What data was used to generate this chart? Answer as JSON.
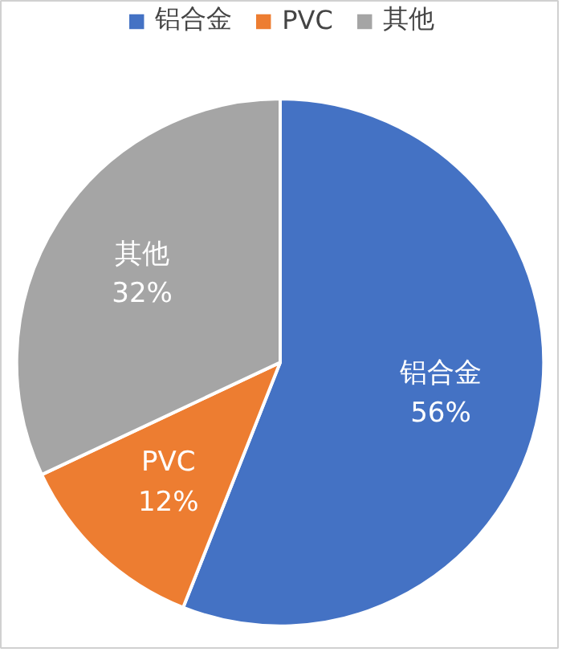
{
  "chart_data": {
    "type": "pie",
    "categories": [
      "铝合金",
      "PVC",
      "其他"
    ],
    "values": [
      56,
      12,
      32
    ],
    "colors": [
      "#4472c4",
      "#ed7d31",
      "#a5a5a5"
    ],
    "value_labels": [
      "56%",
      "12%",
      "32%"
    ],
    "legend": "top"
  }
}
